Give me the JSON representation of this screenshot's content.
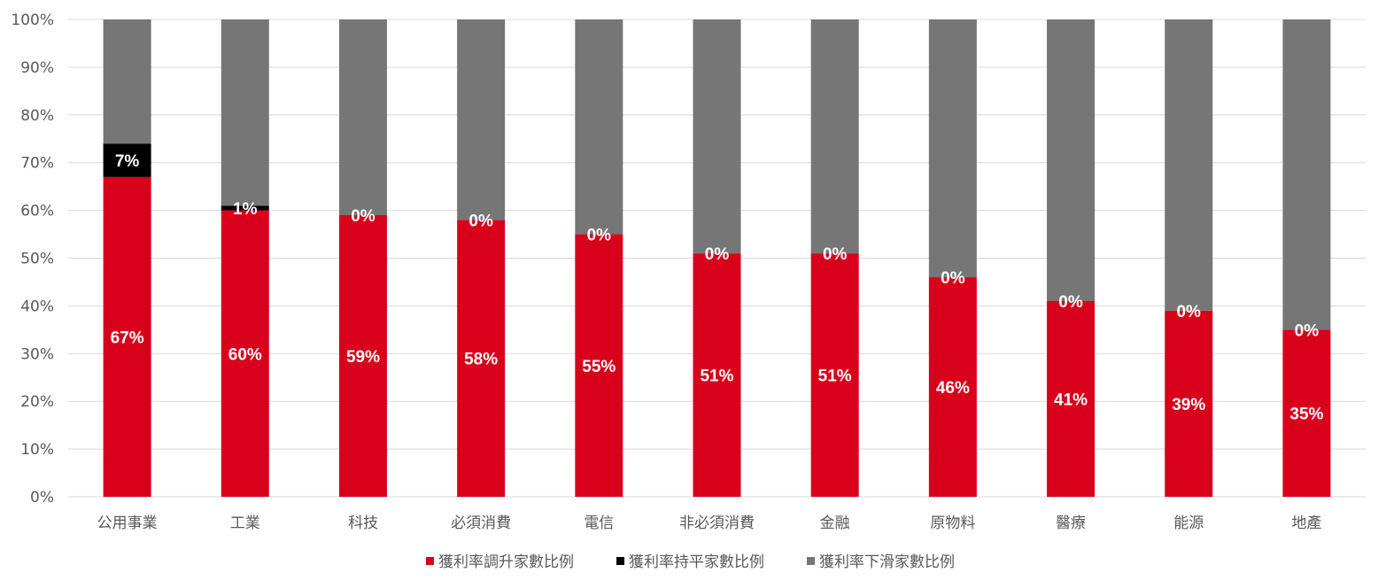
{
  "chart_data": {
    "type": "bar",
    "stacked": true,
    "percent_stacked": true,
    "categories": [
      "公用事業",
      "工業",
      "科技",
      "必須消費",
      "電信",
      "非必須消費",
      "金融",
      "原物料",
      "醫療",
      "能源",
      "地產"
    ],
    "series": [
      {
        "name": "獲利率調升家數比例",
        "color": "#d9001b",
        "values": [
          67,
          60,
          59,
          58,
          55,
          51,
          51,
          46,
          41,
          39,
          35
        ],
        "labels": [
          "67%",
          "60%",
          "59%",
          "58%",
          "55%",
          "51%",
          "51%",
          "46%",
          "41%",
          "39%",
          "35%"
        ]
      },
      {
        "name": "獲利率持平家數比例",
        "color": "#000000",
        "values": [
          7,
          1,
          0,
          0,
          0,
          0,
          0,
          0,
          0,
          0,
          0
        ],
        "labels": [
          "7%",
          "1%",
          "0%",
          "0%",
          "0%",
          "0%",
          "0%",
          "0%",
          "0%",
          "0%",
          "0%"
        ]
      },
      {
        "name": "獲利率下滑家數比例",
        "color": "#767676",
        "values": [
          26,
          39,
          41,
          42,
          45,
          49,
          49,
          54,
          59,
          61,
          65
        ]
      }
    ],
    "y_ticks": [
      "0%",
      "10%",
      "20%",
      "30%",
      "40%",
      "50%",
      "60%",
      "70%",
      "80%",
      "90%",
      "100%"
    ],
    "ylim": [
      0,
      100
    ],
    "grid": true,
    "legend_position": "bottom"
  }
}
